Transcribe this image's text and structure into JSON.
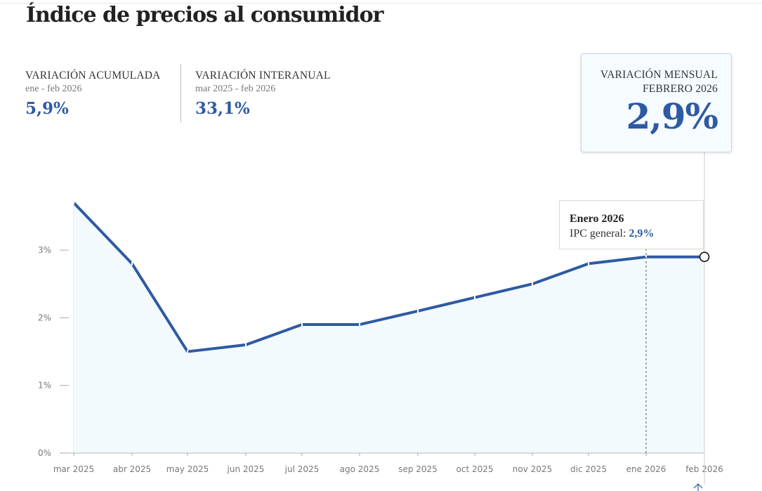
{
  "header": {
    "title": "Índice de precios al consumidor"
  },
  "stats": {
    "cumulative": {
      "label": "VARIACIÓN ACUMULADA",
      "period": "ene - feb 2026",
      "value": "5,9%"
    },
    "yearly": {
      "label": "VARIACIÓN INTERANUAL",
      "period": "mar 2025 - feb 2026",
      "value": "33,1%"
    },
    "monthly": {
      "label_line1": "VARIACIÓN MENSUAL",
      "label_line2": "FEBRERO 2026",
      "value": "2,9%"
    }
  },
  "tooltip": {
    "title": "Enero 2026",
    "series_label": "IPC general:",
    "value": "2,9%"
  },
  "colors": {
    "line": "#2e5aa3",
    "area": "#f2fafd",
    "accent": "#2e5aa3"
  },
  "chart_data": {
    "type": "area",
    "title": "Índice de precios al consumidor",
    "categories": [
      "mar 2025",
      "abr 2025",
      "may 2025",
      "jun 2025",
      "jul 2025",
      "ago 2025",
      "sep 2025",
      "oct 2025",
      "nov 2025",
      "dic 2025",
      "ene 2026",
      "feb 2026"
    ],
    "series": [
      {
        "name": "IPC general",
        "values": [
          3.7,
          2.8,
          1.5,
          1.6,
          1.9,
          1.9,
          2.1,
          2.3,
          2.5,
          2.8,
          2.9,
          2.9
        ]
      }
    ],
    "yticks": [
      0,
      1,
      2,
      3
    ],
    "ytick_labels": [
      "0%",
      "1%",
      "2%",
      "3%"
    ],
    "ylim": [
      0,
      3.7
    ],
    "xlabel": "",
    "ylabel": "",
    "grid": "vertical",
    "highlight_index": 11,
    "hover_index": 10
  }
}
